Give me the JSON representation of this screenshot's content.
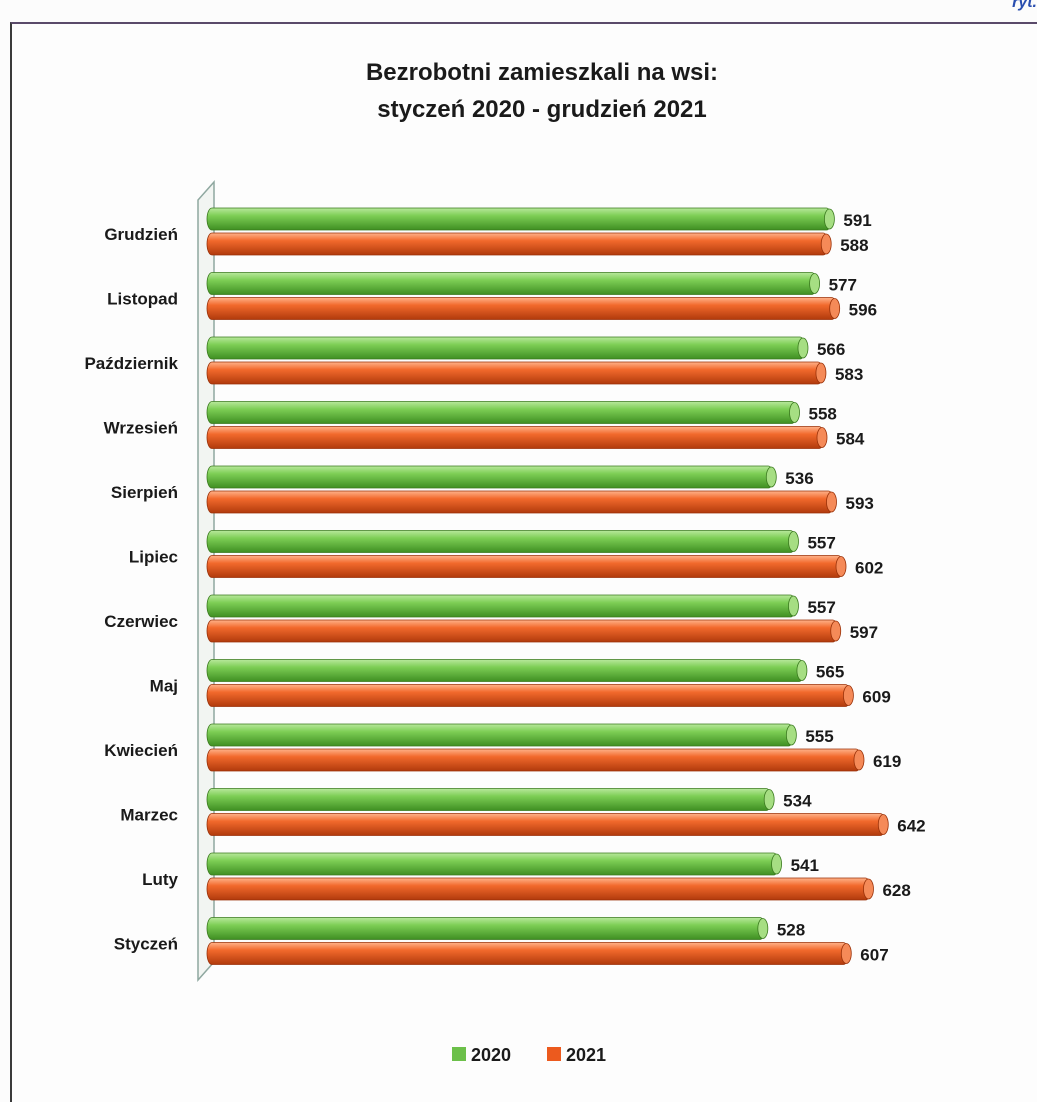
{
  "corner_text": "ryt.",
  "chart_data": {
    "type": "bar",
    "orientation": "horizontal",
    "title": "Bezrobotni zamieszkali na wsi:",
    "subtitle": "styczeń 2020 - grudzień 2021",
    "categories": [
      "Grudzień",
      "Listopad",
      "Październik",
      "Wrzesień",
      "Sierpień",
      "Lipiec",
      "Czerwiec",
      "Maj",
      "Kwiecień",
      "Marzec",
      "Luty",
      "Styczeń"
    ],
    "series": [
      {
        "name": "2020",
        "color": "#6cc04a",
        "values": [
          591,
          577,
          566,
          558,
          536,
          557,
          557,
          565,
          555,
          534,
          541,
          528
        ]
      },
      {
        "name": "2021",
        "color": "#ec5a1e",
        "values": [
          588,
          596,
          583,
          584,
          593,
          602,
          597,
          609,
          619,
          642,
          628,
          607
        ]
      }
    ],
    "legend_position": "bottom",
    "grid": false,
    "xlim": [
      0,
      650
    ]
  }
}
